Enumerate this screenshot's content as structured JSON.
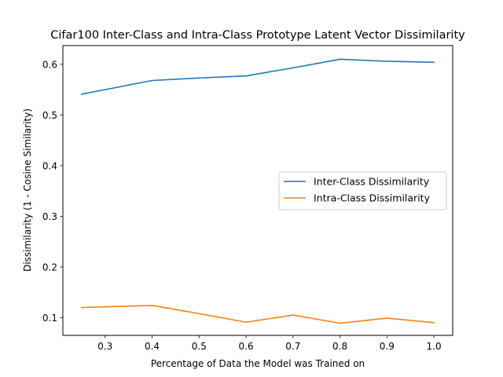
{
  "chart_data": {
    "type": "line",
    "title": "Cifar100 Inter-Class and Intra-Class Prototype Latent Vector Dissimilarity",
    "xlabel": "Percentage of Data the Model was Trained on",
    "ylabel": "Dissimilarity (1 - Cosine Similarity)",
    "x": [
      0.25,
      0.4,
      0.5,
      0.6,
      0.7,
      0.8,
      0.9,
      1.0
    ],
    "xlim": [
      0.21,
      1.04
    ],
    "ylim": [
      0.065,
      0.637
    ],
    "xticks": [
      0.3,
      0.4,
      0.5,
      0.6,
      0.7,
      0.8,
      0.9,
      1.0
    ],
    "xtick_labels": [
      "0.3",
      "0.4",
      "0.5",
      "0.6",
      "0.7",
      "0.8",
      "0.9",
      "1.0"
    ],
    "yticks": [
      0.1,
      0.2,
      0.3,
      0.4,
      0.5,
      0.6
    ],
    "ytick_labels": [
      "0.1",
      "0.2",
      "0.3",
      "0.4",
      "0.5",
      "0.6"
    ],
    "grid": false,
    "legend": "center-right",
    "series": [
      {
        "name": "Inter-Class Dissimilarity",
        "color": "#1f77b4",
        "values": [
          0.541,
          0.568,
          0.573,
          0.577,
          0.593,
          0.61,
          0.606,
          0.604
        ]
      },
      {
        "name": "Intra-Class Dissimilarity",
        "color": "#ff7f0e",
        "values": [
          0.12,
          0.124,
          0.108,
          0.091,
          0.105,
          0.089,
          0.099,
          0.09
        ]
      }
    ]
  }
}
